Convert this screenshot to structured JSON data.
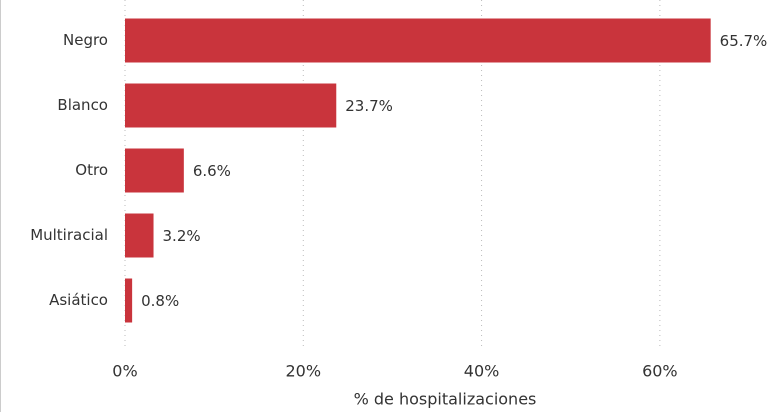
{
  "chart_data": {
    "type": "bar",
    "orientation": "horizontal",
    "categories": [
      "Negro",
      "Blanco",
      "Otro",
      "Multiracial",
      "Asiático"
    ],
    "values": [
      65.7,
      23.7,
      6.6,
      3.2,
      0.8
    ],
    "value_labels": [
      "65.7%",
      "23.7%",
      "6.6%",
      "3.2%",
      "0.8%"
    ],
    "color": "#c9343c",
    "xlabel": "% de hospitalizaciones",
    "xlim": [
      0,
      70
    ],
    "xticks": [
      {
        "value": 0,
        "label": "0%"
      },
      {
        "value": 20,
        "label": "20%"
      },
      {
        "value": 40,
        "label": "40%"
      },
      {
        "value": 60,
        "label": "60%"
      }
    ],
    "grid": true
  }
}
